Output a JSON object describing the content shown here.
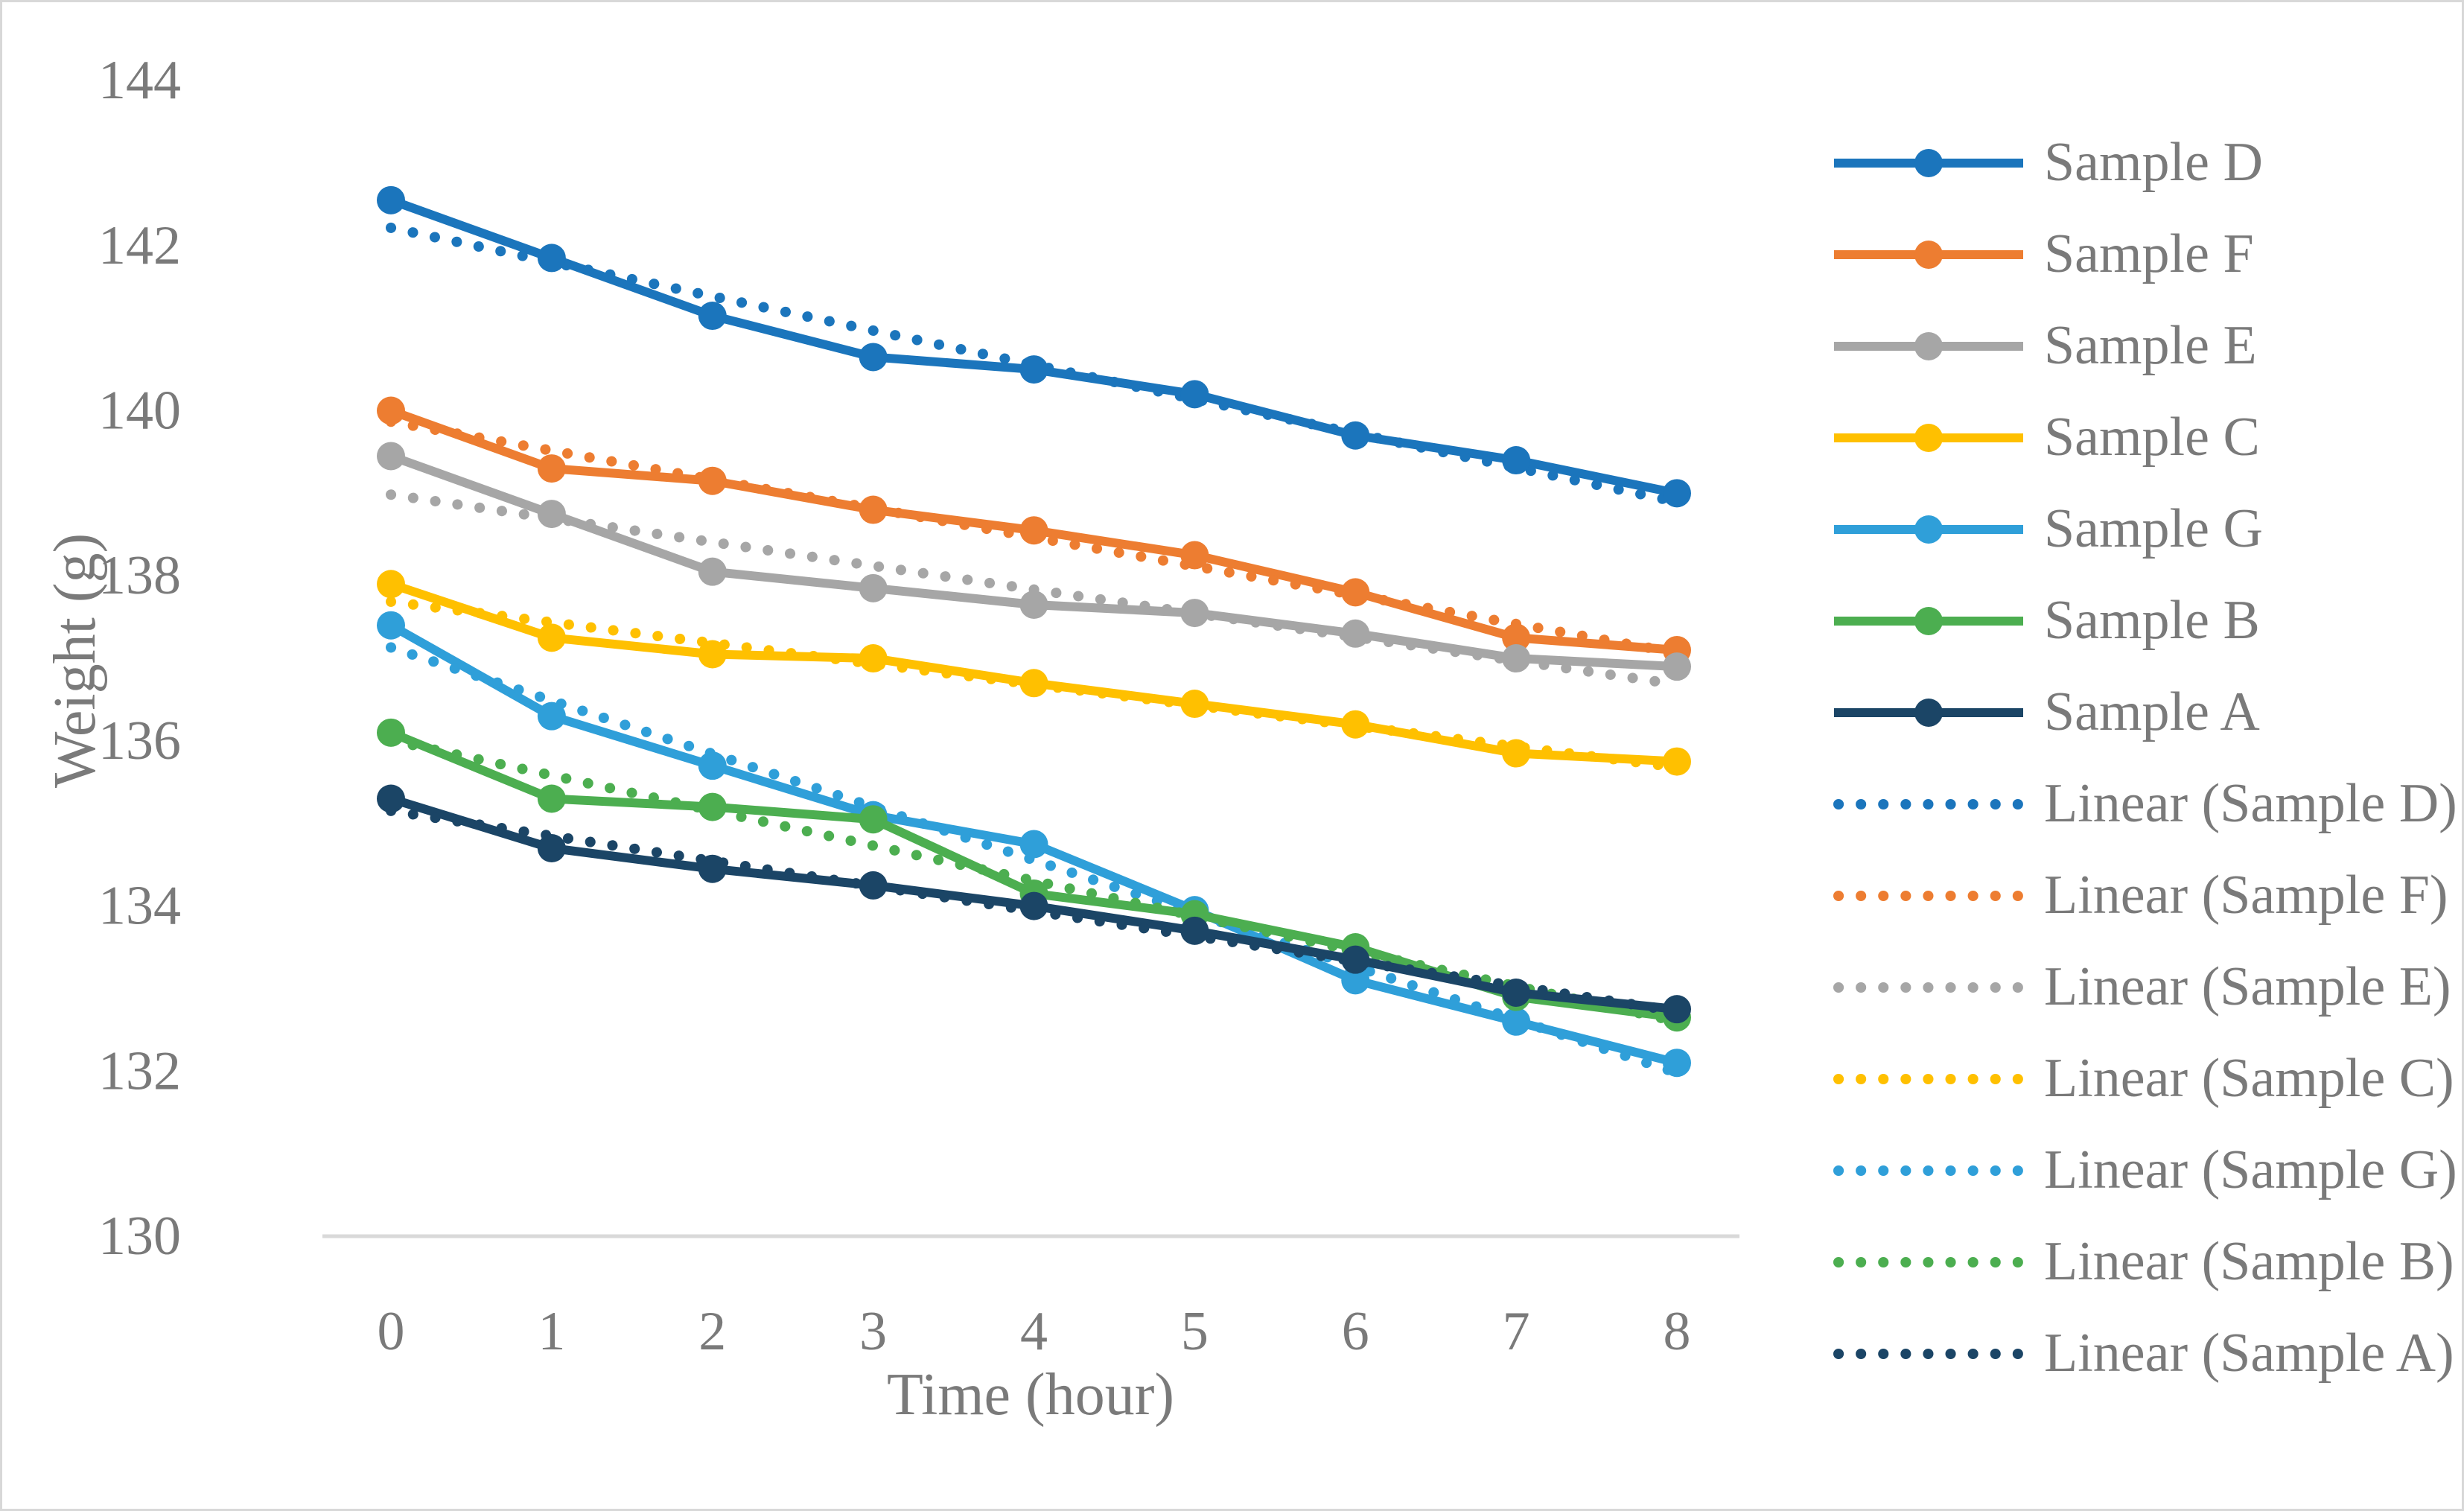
{
  "figure": {
    "background": "#FFFFFF",
    "border_color": "#D8D8D8"
  },
  "axes": {
    "text_color": "#7A7A7A",
    "axis_line_color": "#D9D9D9",
    "x": {
      "title": "Time (hour)",
      "ticks": [
        "0",
        "1",
        "2",
        "3",
        "4",
        "5",
        "6",
        "7",
        "8"
      ]
    },
    "y": {
      "title": "Weight (g)",
      "ticks": [
        "144",
        "142",
        "140",
        "138",
        "136",
        "134",
        "132",
        "130"
      ]
    }
  },
  "chart_data": {
    "type": "line",
    "title": "",
    "xlabel": "Time (hour)",
    "ylabel": "Weight (g)",
    "x": [
      0,
      1,
      2,
      3,
      4,
      5,
      6,
      7,
      8
    ],
    "xlim": [
      0,
      8
    ],
    "ylim": [
      130,
      144
    ],
    "yticks": [
      144,
      142,
      140,
      138,
      136,
      134,
      132,
      130
    ],
    "grid": false,
    "legend_position": "right",
    "series": [
      {
        "name": "Sample D",
        "color": "#1B75BC",
        "values": [
          142.55,
          141.85,
          141.15,
          140.65,
          140.5,
          140.2,
          139.7,
          139.4,
          139.0
        ]
      },
      {
        "name": "Sample F",
        "color": "#ED7D31",
        "values": [
          140.0,
          139.3,
          139.15,
          138.8,
          138.55,
          138.25,
          137.8,
          137.25,
          137.1
        ]
      },
      {
        "name": "Sample E",
        "color": "#A6A6A6",
        "values": [
          139.45,
          138.75,
          138.05,
          137.85,
          137.65,
          137.55,
          137.3,
          137.0,
          136.9
        ]
      },
      {
        "name": "Sample C",
        "color": "#FFC000",
        "values": [
          137.9,
          137.25,
          137.05,
          137.0,
          136.7,
          136.45,
          136.2,
          135.85,
          135.75
        ]
      },
      {
        "name": "Sample G",
        "color": "#2F9FD9",
        "values": [
          137.4,
          136.3,
          135.7,
          135.1,
          134.75,
          133.95,
          133.1,
          132.6,
          132.1
        ]
      },
      {
        "name": "Sample B",
        "color": "#4CAE50",
        "values": [
          136.1,
          135.3,
          135.2,
          135.05,
          134.15,
          133.9,
          133.5,
          132.9,
          132.65
        ]
      },
      {
        "name": "Sample A",
        "color": "#1B4566",
        "values": [
          135.3,
          134.7,
          134.45,
          134.25,
          134.0,
          133.7,
          133.35,
          132.95,
          132.75
        ]
      }
    ],
    "trendlines": [
      {
        "name": "Linear (Sample D)",
        "series": "Sample D"
      },
      {
        "name": "Linear (Sample F)",
        "series": "Sample F"
      },
      {
        "name": "Linear (Sample E)",
        "series": "Sample E"
      },
      {
        "name": "Linear (Sample C)",
        "series": "Sample C"
      },
      {
        "name": "Linear (Sample G)",
        "series": "Sample G"
      },
      {
        "name": "Linear (Sample B)",
        "series": "Sample B"
      },
      {
        "name": "Linear (Sample A)",
        "series": "Sample A"
      }
    ]
  }
}
